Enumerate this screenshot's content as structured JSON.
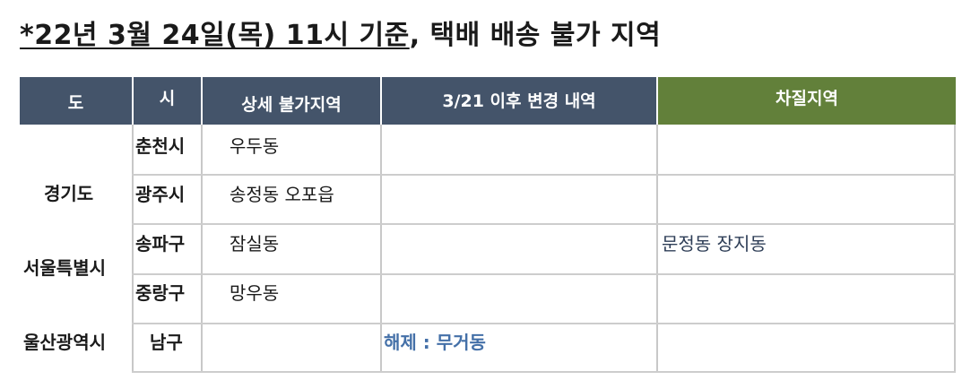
{
  "title": {
    "underlined": "*22년 3월 24일(목) 11시 기준",
    "rest": ", 택배 배송 불가 지역"
  },
  "table": {
    "headers": {
      "province": "도",
      "city": "시",
      "detail": "상세 불가지역",
      "changes": "3/21 이후 변경 내역",
      "difference": "차질지역"
    },
    "rows": {
      "chuncheon": {
        "city": "춘천시",
        "detail": "우두동"
      },
      "gwangju": {
        "city": "광주시",
        "detail": "송정동 오포읍"
      },
      "songpa": {
        "city": "송파구",
        "detail": "잠실동",
        "difference": "문정동 장지동"
      },
      "jungnang": {
        "city": "중랑구",
        "detail": "망우동"
      },
      "namgu": {
        "city": "남구",
        "changes": "해제 : 무거동"
      }
    },
    "provinces": {
      "gyeonggi": "경기도",
      "seoul": "서울특별시",
      "ulsan": "울산광역시"
    }
  },
  "colors": {
    "header_navy": "#44546a",
    "header_green": "#62803a",
    "accent_blue": "#4470a8"
  }
}
